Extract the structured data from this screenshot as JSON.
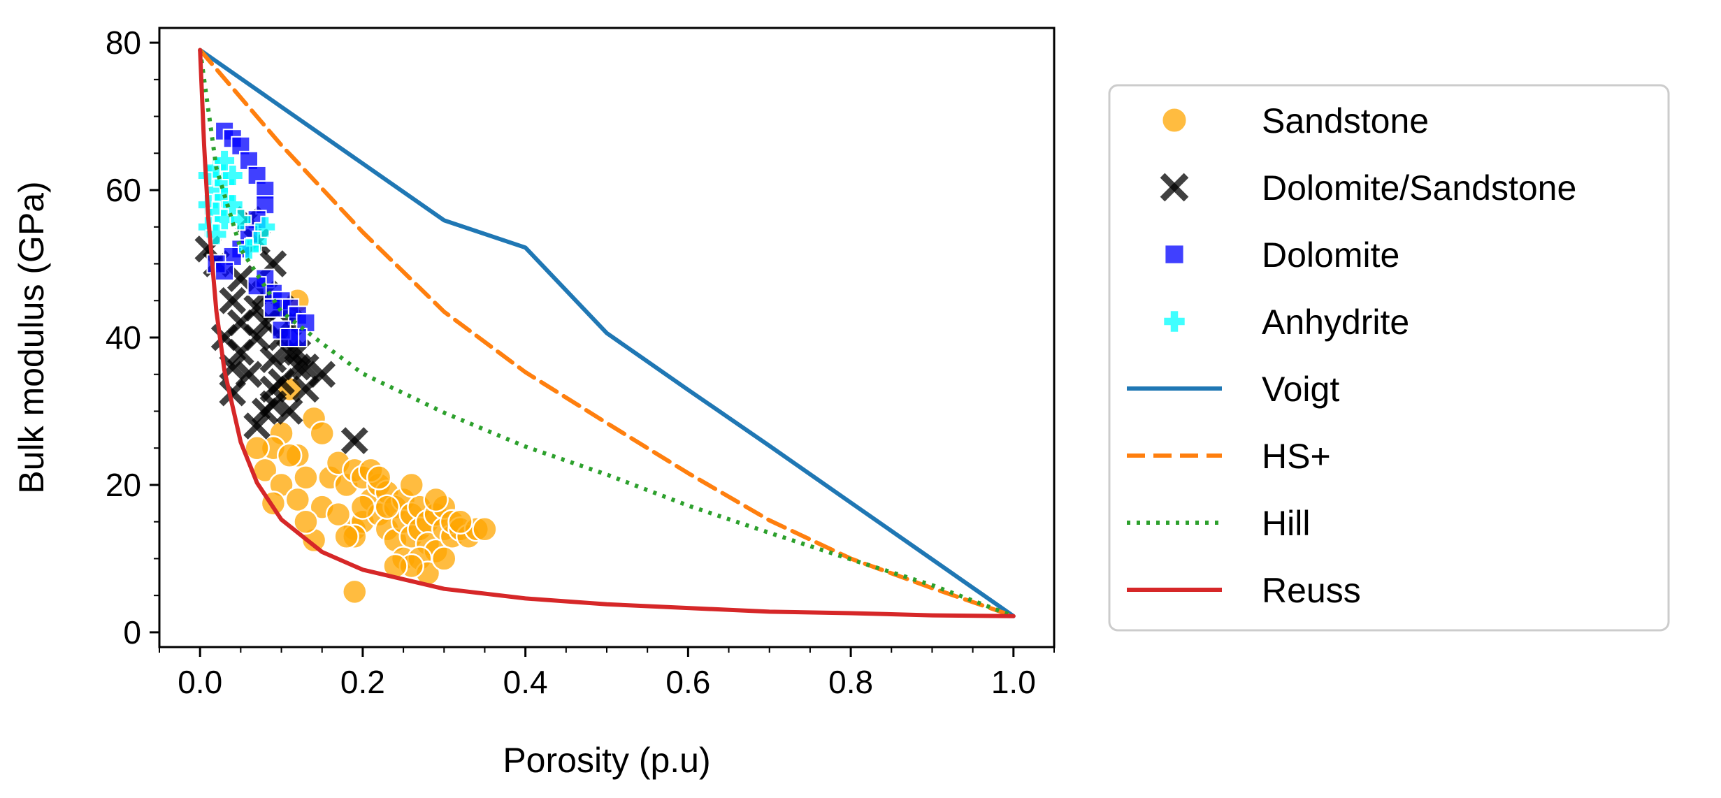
{
  "chart_data": {
    "type": "scatter",
    "title": "",
    "xlabel": "Porosity (p.u)",
    "ylabel": "Bulk modulus (GPa)",
    "xlim": [
      -0.05,
      1.05
    ],
    "ylim": [
      -2,
      82
    ],
    "xticks": [
      0.0,
      0.2,
      0.4,
      0.6,
      0.8,
      1.0
    ],
    "xtick_labels": [
      "0.0",
      "0.2",
      "0.4",
      "0.6",
      "0.8",
      "1.0"
    ],
    "yticks": [
      0,
      20,
      40,
      60,
      80
    ],
    "ytick_labels": [
      "0",
      "20",
      "40",
      "60",
      "80"
    ],
    "grid": false,
    "legend_position": "outside-right",
    "end_members": {
      "mineral_bulk_modulus": 79,
      "pore_fluid_bulk_modulus": 2.2
    },
    "scatter_series": [
      {
        "name": "Sandstone",
        "color": "#FFA500",
        "marker": "circle",
        "points": [
          [
            0.12,
            45
          ],
          [
            0.11,
            33
          ],
          [
            0.1,
            27
          ],
          [
            0.09,
            25
          ],
          [
            0.07,
            25
          ],
          [
            0.08,
            22
          ],
          [
            0.1,
            20
          ],
          [
            0.12,
            24
          ],
          [
            0.14,
            29
          ],
          [
            0.13,
            21
          ],
          [
            0.12,
            18
          ],
          [
            0.09,
            17.5
          ],
          [
            0.14,
            12.5
          ],
          [
            0.15,
            17
          ],
          [
            0.16,
            21
          ],
          [
            0.17,
            23
          ],
          [
            0.18,
            20
          ],
          [
            0.19,
            14
          ],
          [
            0.19,
            22
          ],
          [
            0.2,
            15
          ],
          [
            0.2,
            21
          ],
          [
            0.21,
            18
          ],
          [
            0.22,
            16
          ],
          [
            0.22,
            20
          ],
          [
            0.23,
            19
          ],
          [
            0.23,
            14
          ],
          [
            0.24,
            17
          ],
          [
            0.24,
            12.5
          ],
          [
            0.25,
            18
          ],
          [
            0.25,
            15
          ],
          [
            0.26,
            16
          ],
          [
            0.26,
            13
          ],
          [
            0.27,
            17
          ],
          [
            0.27,
            14
          ],
          [
            0.28,
            15
          ],
          [
            0.28,
            12
          ],
          [
            0.29,
            16
          ],
          [
            0.29,
            11
          ],
          [
            0.3,
            14
          ],
          [
            0.3,
            17
          ],
          [
            0.31,
            13
          ],
          [
            0.31,
            15
          ],
          [
            0.32,
            14
          ],
          [
            0.33,
            13
          ],
          [
            0.34,
            14
          ],
          [
            0.35,
            14
          ],
          [
            0.19,
            13
          ],
          [
            0.21,
            22
          ],
          [
            0.25,
            10
          ],
          [
            0.27,
            10
          ],
          [
            0.28,
            8
          ],
          [
            0.26,
            9
          ],
          [
            0.24,
            9
          ],
          [
            0.19,
            5.5
          ],
          [
            0.18,
            13
          ],
          [
            0.22,
            21
          ],
          [
            0.26,
            20
          ],
          [
            0.29,
            18
          ],
          [
            0.23,
            17
          ],
          [
            0.17,
            16
          ],
          [
            0.15,
            27
          ],
          [
            0.11,
            24
          ],
          [
            0.13,
            15
          ],
          [
            0.2,
            17
          ],
          [
            0.3,
            10
          ],
          [
            0.32,
            15
          ]
        ]
      },
      {
        "name": "Dolomite/Sandstone",
        "color": "#000000",
        "marker": "x",
        "points": [
          [
            0.01,
            52
          ],
          [
            0.02,
            50
          ],
          [
            0.06,
            56
          ],
          [
            0.07,
            53
          ],
          [
            0.05,
            48
          ],
          [
            0.04,
            45
          ],
          [
            0.05,
            42
          ],
          [
            0.07,
            44
          ],
          [
            0.09,
            50
          ],
          [
            0.08,
            46
          ],
          [
            0.03,
            40
          ],
          [
            0.05,
            38
          ],
          [
            0.07,
            40
          ],
          [
            0.08,
            42
          ],
          [
            0.09,
            37
          ],
          [
            0.1,
            40
          ],
          [
            0.11,
            42
          ],
          [
            0.12,
            38
          ],
          [
            0.13,
            36
          ],
          [
            0.15,
            35
          ],
          [
            0.1,
            34
          ],
          [
            0.09,
            31
          ],
          [
            0.08,
            30
          ],
          [
            0.04,
            32.5
          ],
          [
            0.11,
            30
          ],
          [
            0.12,
            36
          ],
          [
            0.06,
            35
          ],
          [
            0.19,
            26
          ],
          [
            0.07,
            28
          ],
          [
            0.1,
            44
          ],
          [
            0.13,
            33
          ],
          [
            0.04,
            36
          ],
          [
            0.09,
            33
          ],
          [
            0.11,
            38
          ]
        ]
      },
      {
        "name": "Dolomite",
        "color": "#0000FF",
        "marker": "square",
        "points": [
          [
            0.03,
            68
          ],
          [
            0.04,
            67
          ],
          [
            0.05,
            66
          ],
          [
            0.06,
            64
          ],
          [
            0.07,
            62
          ],
          [
            0.08,
            60
          ],
          [
            0.08,
            58
          ],
          [
            0.07,
            56
          ],
          [
            0.06,
            54
          ],
          [
            0.05,
            52
          ],
          [
            0.04,
            51
          ],
          [
            0.02,
            50
          ],
          [
            0.03,
            49
          ],
          [
            0.08,
            48
          ],
          [
            0.09,
            46
          ],
          [
            0.1,
            45
          ],
          [
            0.11,
            44
          ],
          [
            0.12,
            43
          ],
          [
            0.13,
            42
          ],
          [
            0.12,
            40
          ],
          [
            0.1,
            41
          ],
          [
            0.07,
            47
          ],
          [
            0.09,
            44
          ],
          [
            0.11,
            40
          ]
        ]
      },
      {
        "name": "Anhydrite",
        "color": "#00FFFF",
        "marker": "plus",
        "points": [
          [
            0.01,
            62
          ],
          [
            0.02,
            63
          ],
          [
            0.02,
            60
          ],
          [
            0.03,
            61
          ],
          [
            0.01,
            58
          ],
          [
            0.02,
            57
          ],
          [
            0.03,
            56
          ],
          [
            0.01,
            55
          ],
          [
            0.02,
            54
          ],
          [
            0.03,
            59
          ],
          [
            0.04,
            62
          ],
          [
            0.03,
            64
          ],
          [
            0.07,
            53
          ],
          [
            0.06,
            52
          ],
          [
            0.05,
            56
          ],
          [
            0.04,
            58
          ],
          [
            0.08,
            55
          ]
        ]
      }
    ],
    "line_series": [
      {
        "name": "Voigt",
        "color": "#1F77B4",
        "style": "solid",
        "x": [
          0,
          0.1,
          0.2,
          0.3,
          0.4,
          0.5,
          0.6,
          0.7,
          0.8,
          0.9,
          1.0
        ],
        "y": [
          79,
          71.3,
          63.6,
          55.9,
          52.2,
          40.6,
          32.9,
          25.3,
          17.6,
          9.9,
          2.2
        ]
      },
      {
        "name": "HS+",
        "color": "#FF7F0E",
        "style": "dashed",
        "x": [
          0,
          0.1,
          0.2,
          0.3,
          0.4,
          0.5,
          0.6,
          0.7,
          0.8,
          0.9,
          1.0
        ],
        "y": [
          79,
          66.1,
          54.3,
          43.5,
          35.3,
          28.4,
          21.6,
          15.2,
          10,
          6,
          2.2
        ]
      },
      {
        "name": "Hill",
        "color": "#2CA02C",
        "style": "dotted",
        "x": [
          0,
          0.02,
          0.05,
          0.1,
          0.15,
          0.2,
          0.3,
          0.4,
          0.5,
          0.6,
          0.7,
          0.8,
          0.9,
          1.0
        ],
        "y": [
          79,
          63,
          52,
          43.5,
          39.2,
          35.1,
          29.8,
          25.2,
          21.4,
          17.2,
          13.5,
          9.9,
          6.4,
          2.2
        ]
      },
      {
        "name": "Reuss",
        "color": "#D62728",
        "style": "solid",
        "x": [
          0,
          0.005,
          0.01,
          0.02,
          0.03,
          0.05,
          0.07,
          0.1,
          0.15,
          0.2,
          0.3,
          0.4,
          0.5,
          0.6,
          0.7,
          0.8,
          0.9,
          1.0
        ],
        "y": [
          79,
          66.1,
          56.4,
          43.6,
          35.5,
          25.8,
          20.3,
          15.3,
          10.9,
          8.5,
          5.9,
          4.6,
          3.8,
          3.3,
          2.8,
          2.6,
          2.3,
          2.2
        ]
      }
    ],
    "legend": [
      {
        "label": "Sandstone",
        "kind": "marker",
        "marker": "circle",
        "color": "#FFA500"
      },
      {
        "label": "Dolomite/Sandstone",
        "kind": "marker",
        "marker": "x",
        "color": "#000000"
      },
      {
        "label": "Dolomite",
        "kind": "marker",
        "marker": "square",
        "color": "#0000FF"
      },
      {
        "label": "Anhydrite",
        "kind": "marker",
        "marker": "plus",
        "color": "#00FFFF"
      },
      {
        "label": "Voigt",
        "kind": "line",
        "style": "solid",
        "color": "#1F77B4"
      },
      {
        "label": "HS+",
        "kind": "line",
        "style": "dashed",
        "color": "#FF7F0E"
      },
      {
        "label": "Hill",
        "kind": "line",
        "style": "dotted",
        "color": "#2CA02C"
      },
      {
        "label": "Reuss",
        "kind": "line",
        "style": "solid",
        "color": "#D62728"
      }
    ]
  }
}
